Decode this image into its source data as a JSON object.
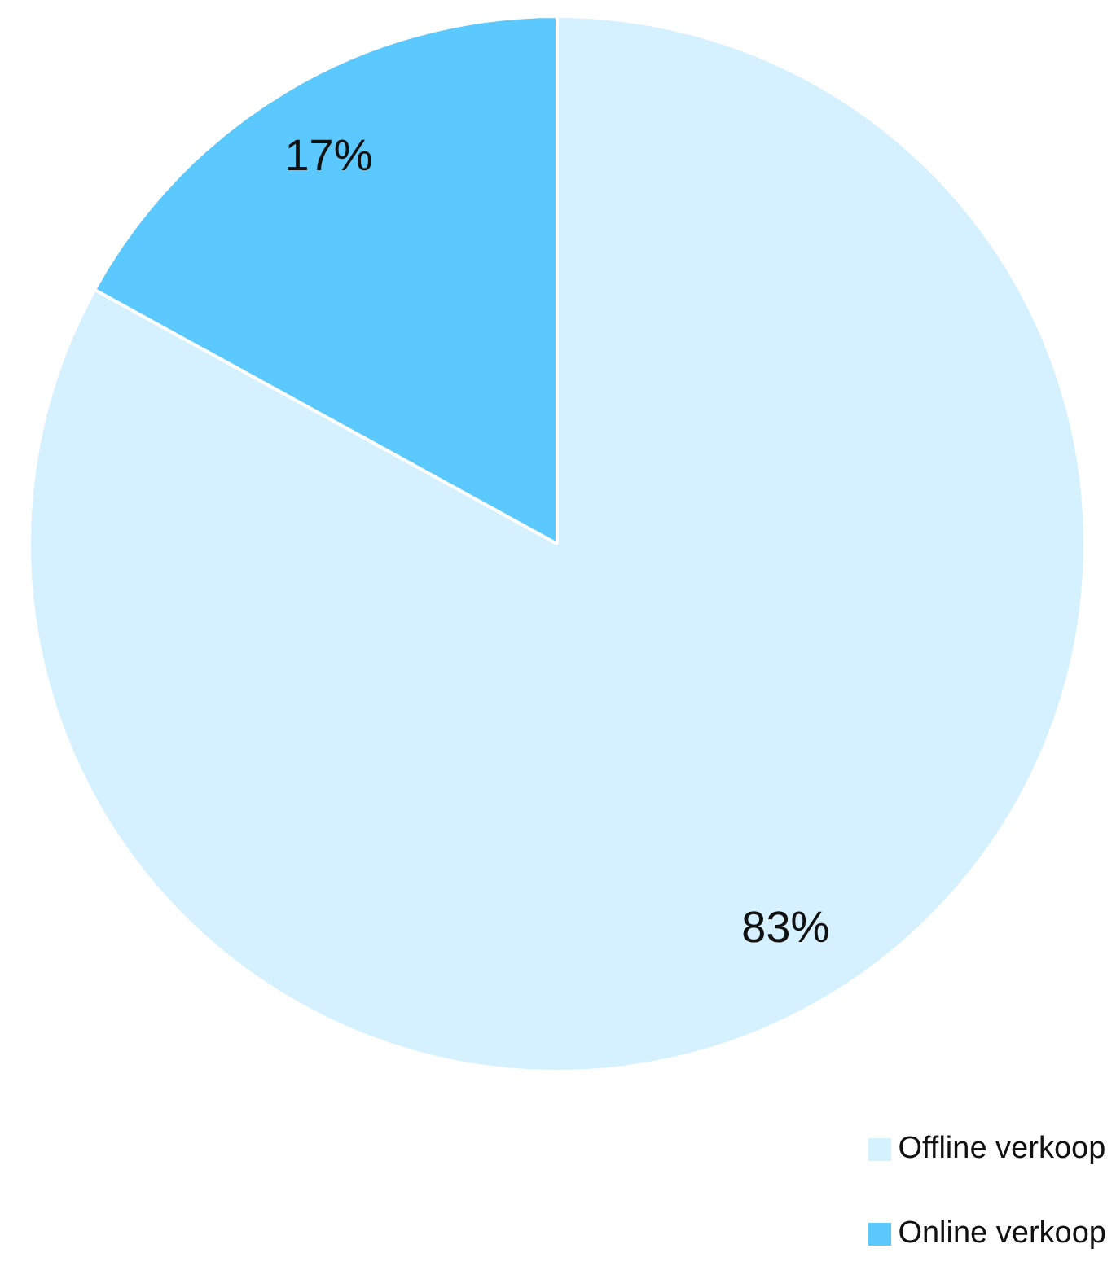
{
  "chart_data": {
    "type": "pie",
    "categories": [
      "Offline verkoop",
      "Online verkoop"
    ],
    "values": [
      83,
      17
    ],
    "colors": [
      "#d5f0fe",
      "#5bc8fe"
    ],
    "value_labels": [
      "83%",
      "17%"
    ],
    "legend": "bottom right"
  }
}
